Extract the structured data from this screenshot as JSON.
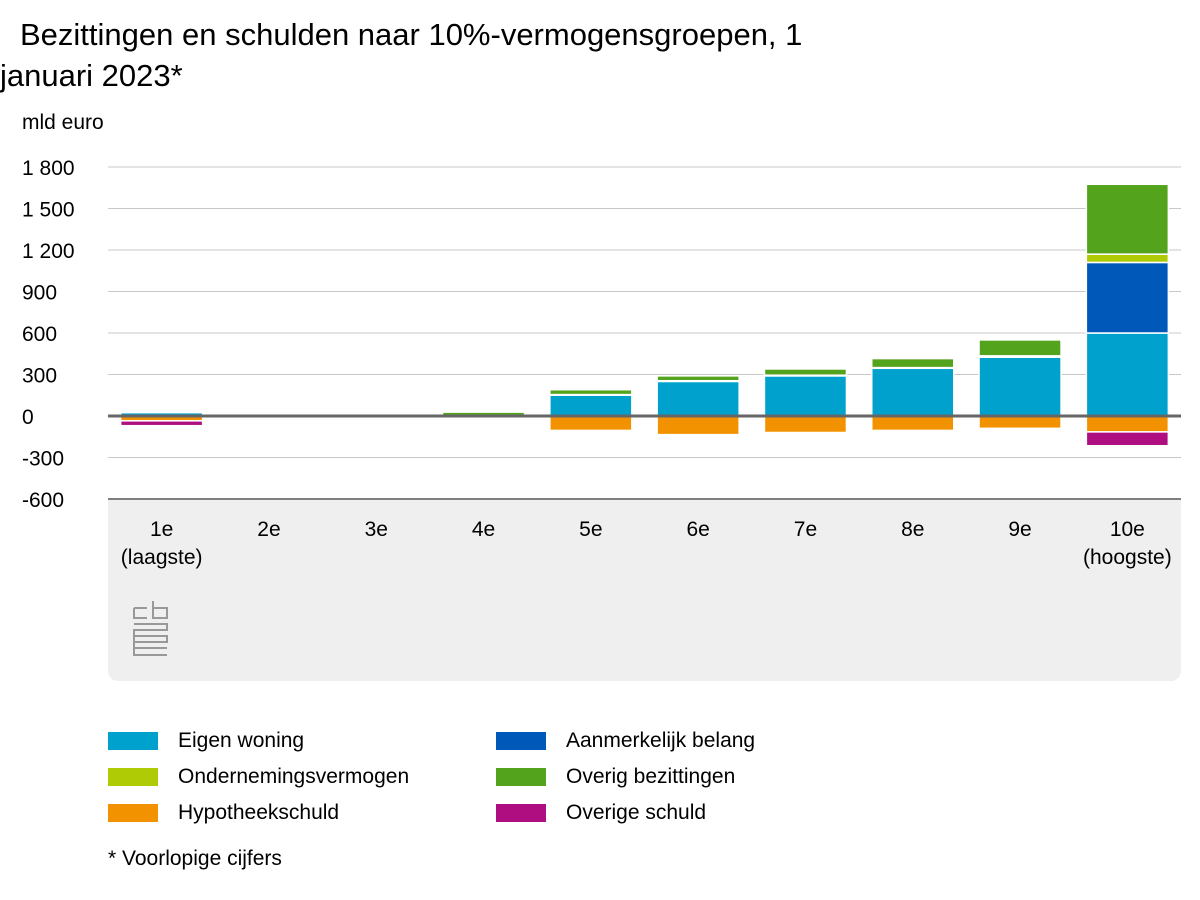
{
  "chart_data": {
    "type": "bar",
    "stacked": true,
    "title": "Bezittingen en schulden naar 10%-vermogensgroepen, 1 januari 2023*",
    "title_lines": [
      "Bezittingen en schulden naar 10%-vermogensgroepen, 1",
      "januari 2023*"
    ],
    "ylabel": "mld euro",
    "ylim": [
      -600,
      1800
    ],
    "yticks": [
      "1 800",
      "1 500",
      "1 200",
      "900",
      "600",
      "300",
      "0",
      "-300",
      "-600"
    ],
    "ytick_values": [
      1800,
      1500,
      1200,
      900,
      600,
      300,
      0,
      -300,
      -600
    ],
    "categories": [
      [
        "1e",
        "(laagste)"
      ],
      [
        "2e"
      ],
      [
        "3e"
      ],
      [
        "4e"
      ],
      [
        "5e"
      ],
      [
        "6e"
      ],
      [
        "7e"
      ],
      [
        "8e"
      ],
      [
        "9e"
      ],
      [
        "10e",
        "(hoogste)"
      ]
    ],
    "grid": true,
    "legend_position": "bottom",
    "series": [
      {
        "name": "Eigen woning",
        "color": "#00a1cd",
        "values": [
          25,
          2,
          2,
          3,
          150,
          250,
          290,
          345,
          425,
          600
        ]
      },
      {
        "name": "Aanmerkelijk belang",
        "color": "#0058b8",
        "values": [
          0,
          0,
          0,
          0,
          0,
          0,
          0,
          0,
          0,
          510
        ]
      },
      {
        "name": "Ondernemingsvermogen",
        "color": "#afcb05",
        "values": [
          0,
          0,
          0,
          0,
          5,
          5,
          5,
          5,
          10,
          60
        ]
      },
      {
        "name": "Overig bezittingen",
        "color": "#53a31d",
        "values": [
          10,
          5,
          5,
          25,
          35,
          35,
          45,
          65,
          115,
          505
        ]
      },
      {
        "name": "Hypotheekschuld",
        "color": "#f39200",
        "values": [
          -35,
          -2,
          -2,
          -3,
          -105,
          -135,
          -120,
          -105,
          -90,
          -115
        ]
      },
      {
        "name": "Overige schuld",
        "color": "#af0e80",
        "values": [
          -35,
          -3,
          -3,
          -2,
          -2,
          -2,
          -3,
          -3,
          -5,
          -100
        ]
      }
    ]
  },
  "legend": {
    "items": [
      {
        "label": "Eigen woning",
        "color": "#00a1cd"
      },
      {
        "label": "Aanmerkelijk belang",
        "color": "#0058b8"
      },
      {
        "label": "Ondernemingsvermogen",
        "color": "#afcb05"
      },
      {
        "label": "Overig bezittingen",
        "color": "#53a31d"
      },
      {
        "label": "Hypotheekschuld",
        "color": "#f39200"
      },
      {
        "label": "Overige schuld",
        "color": "#af0e80"
      }
    ]
  },
  "footnote": "* Voorlopige cijfers",
  "logo": {
    "icon": "cbs-logo-icon",
    "text": "cbs"
  }
}
